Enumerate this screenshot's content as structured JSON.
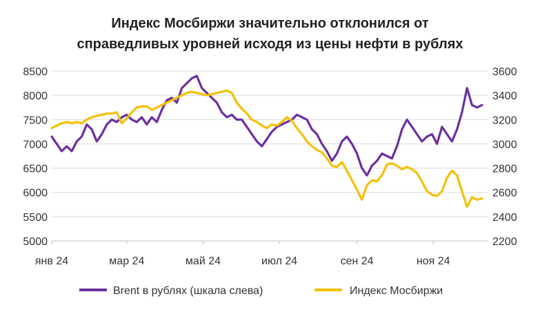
{
  "chart_data": {
    "type": "line",
    "title_line1": "Индекс Мосбиржи значительно отклонился от",
    "title_line2": "справедливых уровней исходя из цены нефти в рублях",
    "x_ticks": [
      "янв 24",
      "мар 24",
      "май 24",
      "июл 24",
      "сен 24",
      "ноя 24"
    ],
    "y_left": {
      "ticks": [
        "8500",
        "8000",
        "7500",
        "7000",
        "6500",
        "6000",
        "5500",
        "5000"
      ],
      "ylim": [
        5000,
        8500
      ]
    },
    "y_right": {
      "ticks": [
        "3600",
        "3400",
        "3200",
        "3000",
        "2800",
        "2600",
        "2400",
        "2200"
      ],
      "ylim": [
        2200,
        3600
      ]
    },
    "grid": true,
    "legend_position": "bottom",
    "series": [
      {
        "name": "Brent в рублях (шкала слева)",
        "axis": "left",
        "color": "#6b2fa0",
        "points": [
          [
            "2024-01-01",
            7150
          ],
          [
            "2024-01-05",
            7000
          ],
          [
            "2024-01-09",
            6850
          ],
          [
            "2024-01-13",
            6950
          ],
          [
            "2024-01-17",
            6850
          ],
          [
            "2024-01-21",
            7050
          ],
          [
            "2024-01-25",
            7150
          ],
          [
            "2024-01-29",
            7400
          ],
          [
            "2024-02-02",
            7300
          ],
          [
            "2024-02-06",
            7050
          ],
          [
            "2024-02-10",
            7200
          ],
          [
            "2024-02-14",
            7400
          ],
          [
            "2024-02-18",
            7500
          ],
          [
            "2024-02-22",
            7450
          ],
          [
            "2024-02-26",
            7550
          ],
          [
            "2024-03-01",
            7600
          ],
          [
            "2024-03-05",
            7500
          ],
          [
            "2024-03-09",
            7450
          ],
          [
            "2024-03-13",
            7550
          ],
          [
            "2024-03-17",
            7400
          ],
          [
            "2024-03-21",
            7550
          ],
          [
            "2024-03-25",
            7450
          ],
          [
            "2024-03-29",
            7700
          ],
          [
            "2024-04-02",
            7900
          ],
          [
            "2024-04-06",
            7950
          ],
          [
            "2024-04-10",
            7850
          ],
          [
            "2024-04-14",
            8150
          ],
          [
            "2024-04-18",
            8250
          ],
          [
            "2024-04-22",
            8350
          ],
          [
            "2024-04-26",
            8400
          ],
          [
            "2024-04-30",
            8150
          ],
          [
            "2024-05-04",
            8050
          ],
          [
            "2024-05-08",
            7950
          ],
          [
            "2024-05-12",
            7850
          ],
          [
            "2024-05-16",
            7650
          ],
          [
            "2024-05-20",
            7550
          ],
          [
            "2024-05-24",
            7600
          ],
          [
            "2024-05-28",
            7500
          ],
          [
            "2024-06-01",
            7500
          ],
          [
            "2024-06-05",
            7350
          ],
          [
            "2024-06-09",
            7200
          ],
          [
            "2024-06-13",
            7050
          ],
          [
            "2024-06-17",
            6950
          ],
          [
            "2024-06-21",
            7100
          ],
          [
            "2024-06-25",
            7250
          ],
          [
            "2024-06-29",
            7350
          ],
          [
            "2024-07-03",
            7400
          ],
          [
            "2024-07-07",
            7450
          ],
          [
            "2024-07-11",
            7500
          ],
          [
            "2024-07-15",
            7600
          ],
          [
            "2024-07-19",
            7550
          ],
          [
            "2024-07-23",
            7500
          ],
          [
            "2024-07-27",
            7300
          ],
          [
            "2024-07-31",
            7200
          ],
          [
            "2024-08-04",
            7000
          ],
          [
            "2024-08-08",
            6850
          ],
          [
            "2024-08-12",
            6650
          ],
          [
            "2024-08-16",
            6800
          ],
          [
            "2024-08-20",
            7050
          ],
          [
            "2024-08-24",
            7150
          ],
          [
            "2024-08-28",
            7000
          ],
          [
            "2024-09-01",
            6800
          ],
          [
            "2024-09-05",
            6500
          ],
          [
            "2024-09-09",
            6350
          ],
          [
            "2024-09-13",
            6550
          ],
          [
            "2024-09-17",
            6650
          ],
          [
            "2024-09-21",
            6800
          ],
          [
            "2024-09-25",
            6750
          ],
          [
            "2024-09-29",
            6700
          ],
          [
            "2024-10-03",
            6950
          ],
          [
            "2024-10-07",
            7300
          ],
          [
            "2024-10-11",
            7500
          ],
          [
            "2024-10-15",
            7350
          ],
          [
            "2024-10-19",
            7200
          ],
          [
            "2024-10-23",
            7050
          ],
          [
            "2024-10-27",
            7150
          ],
          [
            "2024-10-31",
            7200
          ],
          [
            "2024-11-04",
            7000
          ],
          [
            "2024-11-08",
            7350
          ],
          [
            "2024-11-12",
            7200
          ],
          [
            "2024-11-16",
            7050
          ],
          [
            "2024-11-20",
            7300
          ],
          [
            "2024-11-24",
            7650
          ],
          [
            "2024-11-28",
            8150
          ],
          [
            "2024-12-02",
            7800
          ],
          [
            "2024-12-06",
            7750
          ],
          [
            "2024-12-10",
            7800
          ]
        ]
      },
      {
        "name": "Индекс Мосбиржи",
        "axis": "right",
        "color": "#f5c000",
        "points": [
          [
            "2024-01-01",
            3130
          ],
          [
            "2024-01-05",
            3150
          ],
          [
            "2024-01-09",
            3170
          ],
          [
            "2024-01-13",
            3180
          ],
          [
            "2024-01-17",
            3170
          ],
          [
            "2024-01-21",
            3180
          ],
          [
            "2024-01-25",
            3170
          ],
          [
            "2024-01-29",
            3200
          ],
          [
            "2024-02-02",
            3220
          ],
          [
            "2024-02-06",
            3230
          ],
          [
            "2024-02-10",
            3240
          ],
          [
            "2024-02-14",
            3250
          ],
          [
            "2024-02-18",
            3250
          ],
          [
            "2024-02-22",
            3260
          ],
          [
            "2024-02-26",
            3170
          ],
          [
            "2024-03-01",
            3210
          ],
          [
            "2024-03-05",
            3260
          ],
          [
            "2024-03-09",
            3300
          ],
          [
            "2024-03-13",
            3310
          ],
          [
            "2024-03-17",
            3310
          ],
          [
            "2024-03-21",
            3280
          ],
          [
            "2024-03-25",
            3300
          ],
          [
            "2024-03-29",
            3320
          ],
          [
            "2024-04-02",
            3340
          ],
          [
            "2024-04-06",
            3360
          ],
          [
            "2024-04-10",
            3380
          ],
          [
            "2024-04-14",
            3400
          ],
          [
            "2024-04-18",
            3420
          ],
          [
            "2024-04-22",
            3430
          ],
          [
            "2024-04-26",
            3420
          ],
          [
            "2024-04-30",
            3410
          ],
          [
            "2024-05-04",
            3400
          ],
          [
            "2024-05-08",
            3410
          ],
          [
            "2024-05-12",
            3420
          ],
          [
            "2024-05-16",
            3430
          ],
          [
            "2024-05-20",
            3440
          ],
          [
            "2024-05-24",
            3420
          ],
          [
            "2024-05-28",
            3340
          ],
          [
            "2024-06-01",
            3290
          ],
          [
            "2024-06-05",
            3250
          ],
          [
            "2024-06-09",
            3200
          ],
          [
            "2024-06-13",
            3180
          ],
          [
            "2024-06-17",
            3150
          ],
          [
            "2024-06-21",
            3130
          ],
          [
            "2024-06-25",
            3160
          ],
          [
            "2024-06-29",
            3150
          ],
          [
            "2024-07-03",
            3180
          ],
          [
            "2024-07-07",
            3220
          ],
          [
            "2024-07-11",
            3190
          ],
          [
            "2024-07-15",
            3130
          ],
          [
            "2024-07-19",
            3080
          ],
          [
            "2024-07-23",
            3020
          ],
          [
            "2024-07-27",
            2980
          ],
          [
            "2024-07-31",
            2950
          ],
          [
            "2024-08-04",
            2930
          ],
          [
            "2024-08-08",
            2880
          ],
          [
            "2024-08-12",
            2820
          ],
          [
            "2024-08-16",
            2810
          ],
          [
            "2024-08-20",
            2850
          ],
          [
            "2024-08-24",
            2780
          ],
          [
            "2024-08-28",
            2700
          ],
          [
            "2024-09-01",
            2620
          ],
          [
            "2024-09-05",
            2540
          ],
          [
            "2024-09-09",
            2660
          ],
          [
            "2024-09-13",
            2700
          ],
          [
            "2024-09-17",
            2690
          ],
          [
            "2024-09-21",
            2740
          ],
          [
            "2024-09-25",
            2830
          ],
          [
            "2024-09-29",
            2840
          ],
          [
            "2024-10-03",
            2820
          ],
          [
            "2024-10-07",
            2790
          ],
          [
            "2024-10-11",
            2810
          ],
          [
            "2024-10-15",
            2790
          ],
          [
            "2024-10-19",
            2760
          ],
          [
            "2024-10-23",
            2690
          ],
          [
            "2024-10-27",
            2610
          ],
          [
            "2024-10-31",
            2580
          ],
          [
            "2024-11-04",
            2570
          ],
          [
            "2024-11-08",
            2610
          ],
          [
            "2024-11-12",
            2720
          ],
          [
            "2024-11-16",
            2780
          ],
          [
            "2024-11-20",
            2740
          ],
          [
            "2024-11-24",
            2610
          ],
          [
            "2024-11-28",
            2480
          ],
          [
            "2024-12-02",
            2560
          ],
          [
            "2024-12-06",
            2540
          ],
          [
            "2024-12-10",
            2550
          ]
        ]
      }
    ]
  }
}
